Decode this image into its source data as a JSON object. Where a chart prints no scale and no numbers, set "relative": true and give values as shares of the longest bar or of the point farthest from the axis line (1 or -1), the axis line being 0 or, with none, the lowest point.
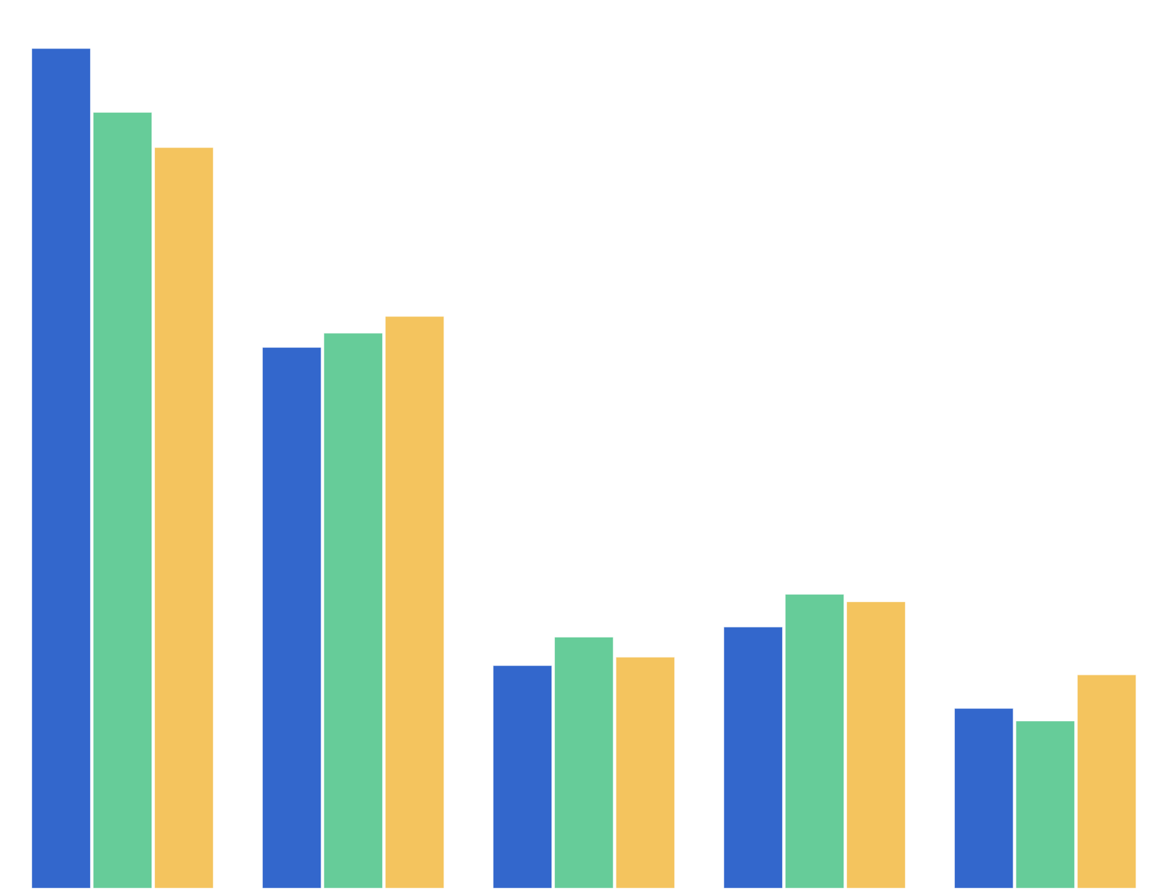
{
  "chart_data": {
    "type": "bar",
    "relative": true,
    "categories": [
      null,
      null,
      null,
      null,
      null
    ],
    "series": [
      {
        "color": "#3367cc",
        "values": [
          1.0,
          0.644,
          0.265,
          0.311,
          0.214
        ]
      },
      {
        "color": "#66cc99",
        "values": [
          0.924,
          0.661,
          0.299,
          0.35,
          0.199
        ]
      },
      {
        "color": "#f4c45e",
        "values": [
          0.882,
          0.681,
          0.275,
          0.341,
          0.254
        ]
      }
    ]
  }
}
